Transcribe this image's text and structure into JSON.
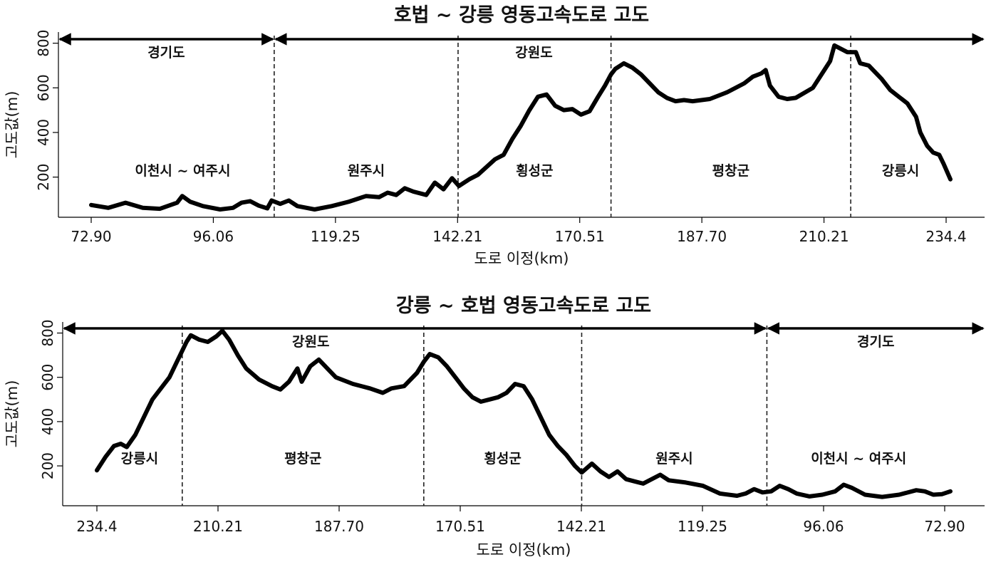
{
  "chart_data": [
    {
      "type": "line",
      "title": "호법 ~ 강릉 영동고속도로 고도",
      "xlabel": "도로 이정(km)",
      "ylabel": "고도값(m)",
      "x_tick_labels": [
        "72.90",
        "96.06",
        "119.25",
        "142.21",
        "170.51",
        "187.70",
        "210.21",
        "234.4"
      ],
      "y_ticks": [
        200,
        400,
        600,
        800
      ],
      "provinces": [
        {
          "name": "경기도",
          "from": 0,
          "to": 21.3
        },
        {
          "name": "강원도",
          "from": 21.3,
          "to": 100
        }
      ],
      "regions": [
        {
          "name": "이천시 ~ 여주시",
          "from": 0,
          "to": 21.3
        },
        {
          "name": "원주시",
          "from": 21.3,
          "to": 42.7
        },
        {
          "name": "횡성군",
          "from": 42.7,
          "to": 60.5
        },
        {
          "name": "평창군",
          "from": 60.5,
          "to": 88.4
        },
        {
          "name": "강릉시",
          "from": 88.4,
          "to": 100
        }
      ],
      "boundaries": [
        21.3,
        42.7,
        60.5,
        88.4
      ],
      "profile": [
        [
          0,
          75
        ],
        [
          2,
          62
        ],
        [
          4,
          85
        ],
        [
          6,
          62
        ],
        [
          8,
          58
        ],
        [
          10,
          85
        ],
        [
          10.6,
          115
        ],
        [
          11.5,
          90
        ],
        [
          13,
          70
        ],
        [
          15,
          55
        ],
        [
          16.5,
          62
        ],
        [
          17.5,
          85
        ],
        [
          18.5,
          92
        ],
        [
          19.5,
          72
        ],
        [
          20.5,
          60
        ],
        [
          21,
          95
        ],
        [
          22,
          80
        ],
        [
          23,
          95
        ],
        [
          24,
          70
        ],
        [
          26,
          55
        ],
        [
          28,
          70
        ],
        [
          30,
          90
        ],
        [
          32,
          115
        ],
        [
          33.5,
          110
        ],
        [
          34.5,
          130
        ],
        [
          35.5,
          120
        ],
        [
          36.5,
          150
        ],
        [
          37.5,
          135
        ],
        [
          39,
          120
        ],
        [
          40,
          175
        ],
        [
          41,
          145
        ],
        [
          42,
          195
        ],
        [
          42.8,
          160
        ],
        [
          44,
          190
        ],
        [
          45,
          210
        ],
        [
          46,
          245
        ],
        [
          47,
          280
        ],
        [
          48,
          300
        ],
        [
          49,
          370
        ],
        [
          50,
          430
        ],
        [
          51,
          500
        ],
        [
          52,
          560
        ],
        [
          53,
          570
        ],
        [
          54,
          520
        ],
        [
          55,
          500
        ],
        [
          56,
          505
        ],
        [
          57,
          480
        ],
        [
          58,
          495
        ],
        [
          59,
          560
        ],
        [
          59.8,
          610
        ],
        [
          60.5,
          660
        ],
        [
          61,
          685
        ],
        [
          62,
          710
        ],
        [
          63,
          690
        ],
        [
          64,
          660
        ],
        [
          65,
          620
        ],
        [
          66,
          580
        ],
        [
          67,
          555
        ],
        [
          68,
          540
        ],
        [
          69,
          545
        ],
        [
          70,
          540
        ],
        [
          72,
          550
        ],
        [
          74,
          580
        ],
        [
          76,
          620
        ],
        [
          77,
          650
        ],
        [
          78,
          665
        ],
        [
          78.5,
          680
        ],
        [
          79,
          610
        ],
        [
          80,
          560
        ],
        [
          81,
          550
        ],
        [
          82,
          555
        ],
        [
          84,
          600
        ],
        [
          85,
          660
        ],
        [
          86,
          720
        ],
        [
          86.5,
          790
        ],
        [
          87,
          780
        ],
        [
          88,
          760
        ],
        [
          89,
          760
        ],
        [
          89.5,
          710
        ],
        [
          90.5,
          700
        ],
        [
          92,
          640
        ],
        [
          93,
          590
        ],
        [
          94,
          560
        ],
        [
          95,
          530
        ],
        [
          96,
          470
        ],
        [
          96.5,
          400
        ],
        [
          97.3,
          340
        ],
        [
          98,
          310
        ],
        [
          98.7,
          300
        ],
        [
          99.2,
          260
        ],
        [
          100,
          190
        ]
      ]
    },
    {
      "type": "line",
      "title": "강릉 ~ 호법 영동고속도로 고도",
      "xlabel": "도로 이정(km)",
      "ylabel": "고도값(m)",
      "x_tick_labels": [
        "234.4",
        "210.21",
        "187.70",
        "170.51",
        "142.21",
        "119.25",
        "96.06",
        "72.90"
      ],
      "y_ticks": [
        200,
        400,
        600,
        800
      ],
      "provinces": [
        {
          "name": "강원도",
          "from": 0,
          "to": 78.5
        },
        {
          "name": "경기도",
          "from": 78.5,
          "to": 100
        }
      ],
      "regions": [
        {
          "name": "강릉시",
          "from": 0,
          "to": 10
        },
        {
          "name": "평창군",
          "from": 10,
          "to": 38.3
        },
        {
          "name": "횡성군",
          "from": 38.3,
          "to": 56.8
        },
        {
          "name": "원주시",
          "from": 56.8,
          "to": 78.5
        },
        {
          "name": "이천시 ~ 여주시",
          "from": 78.5,
          "to": 100
        }
      ],
      "boundaries": [
        10,
        38.3,
        56.8,
        78.5
      ],
      "profile": [
        [
          0,
          180
        ],
        [
          1,
          240
        ],
        [
          2,
          290
        ],
        [
          2.8,
          300
        ],
        [
          3.5,
          285
        ],
        [
          4.5,
          340
        ],
        [
          5.5,
          420
        ],
        [
          6.5,
          500
        ],
        [
          7.5,
          550
        ],
        [
          8.5,
          600
        ],
        [
          9.5,
          680
        ],
        [
          10,
          720
        ],
        [
          10.5,
          760
        ],
        [
          11,
          790
        ],
        [
          12,
          770
        ],
        [
          13,
          760
        ],
        [
          14,
          785
        ],
        [
          14.7,
          810
        ],
        [
          15.5,
          770
        ],
        [
          16.5,
          700
        ],
        [
          17.5,
          640
        ],
        [
          19,
          590
        ],
        [
          20.5,
          560
        ],
        [
          21.5,
          545
        ],
        [
          22.5,
          580
        ],
        [
          23.5,
          640
        ],
        [
          24,
          580
        ],
        [
          25,
          650
        ],
        [
          26,
          680
        ],
        [
          27,
          640
        ],
        [
          28,
          600
        ],
        [
          30,
          570
        ],
        [
          32,
          550
        ],
        [
          33.5,
          530
        ],
        [
          34.5,
          550
        ],
        [
          36,
          560
        ],
        [
          37.5,
          620
        ],
        [
          38.3,
          670
        ],
        [
          39,
          705
        ],
        [
          40,
          690
        ],
        [
          41,
          650
        ],
        [
          42,
          600
        ],
        [
          43,
          550
        ],
        [
          44,
          510
        ],
        [
          45,
          490
        ],
        [
          46,
          500
        ],
        [
          47,
          510
        ],
        [
          48,
          530
        ],
        [
          49,
          570
        ],
        [
          50,
          560
        ],
        [
          51,
          500
        ],
        [
          52,
          420
        ],
        [
          53,
          340
        ],
        [
          54,
          290
        ],
        [
          55,
          250
        ],
        [
          56,
          200
        ],
        [
          56.8,
          170
        ],
        [
          58,
          210
        ],
        [
          59,
          175
        ],
        [
          60,
          150
        ],
        [
          61,
          175
        ],
        [
          62,
          140
        ],
        [
          64,
          120
        ],
        [
          66,
          160
        ],
        [
          67,
          135
        ],
        [
          69,
          125
        ],
        [
          71,
          110
        ],
        [
          73,
          75
        ],
        [
          75,
          65
        ],
        [
          76,
          75
        ],
        [
          77,
          95
        ],
        [
          78,
          80
        ],
        [
          79,
          85
        ],
        [
          80,
          110
        ],
        [
          81,
          95
        ],
        [
          82,
          75
        ],
        [
          83.5,
          62
        ],
        [
          85,
          70
        ],
        [
          86.5,
          85
        ],
        [
          87.5,
          115
        ],
        [
          88.5,
          100
        ],
        [
          90,
          70
        ],
        [
          92,
          60
        ],
        [
          94,
          70
        ],
        [
          96,
          90
        ],
        [
          97,
          85
        ],
        [
          98,
          70
        ],
        [
          99,
          72
        ],
        [
          100,
          85
        ]
      ]
    }
  ]
}
